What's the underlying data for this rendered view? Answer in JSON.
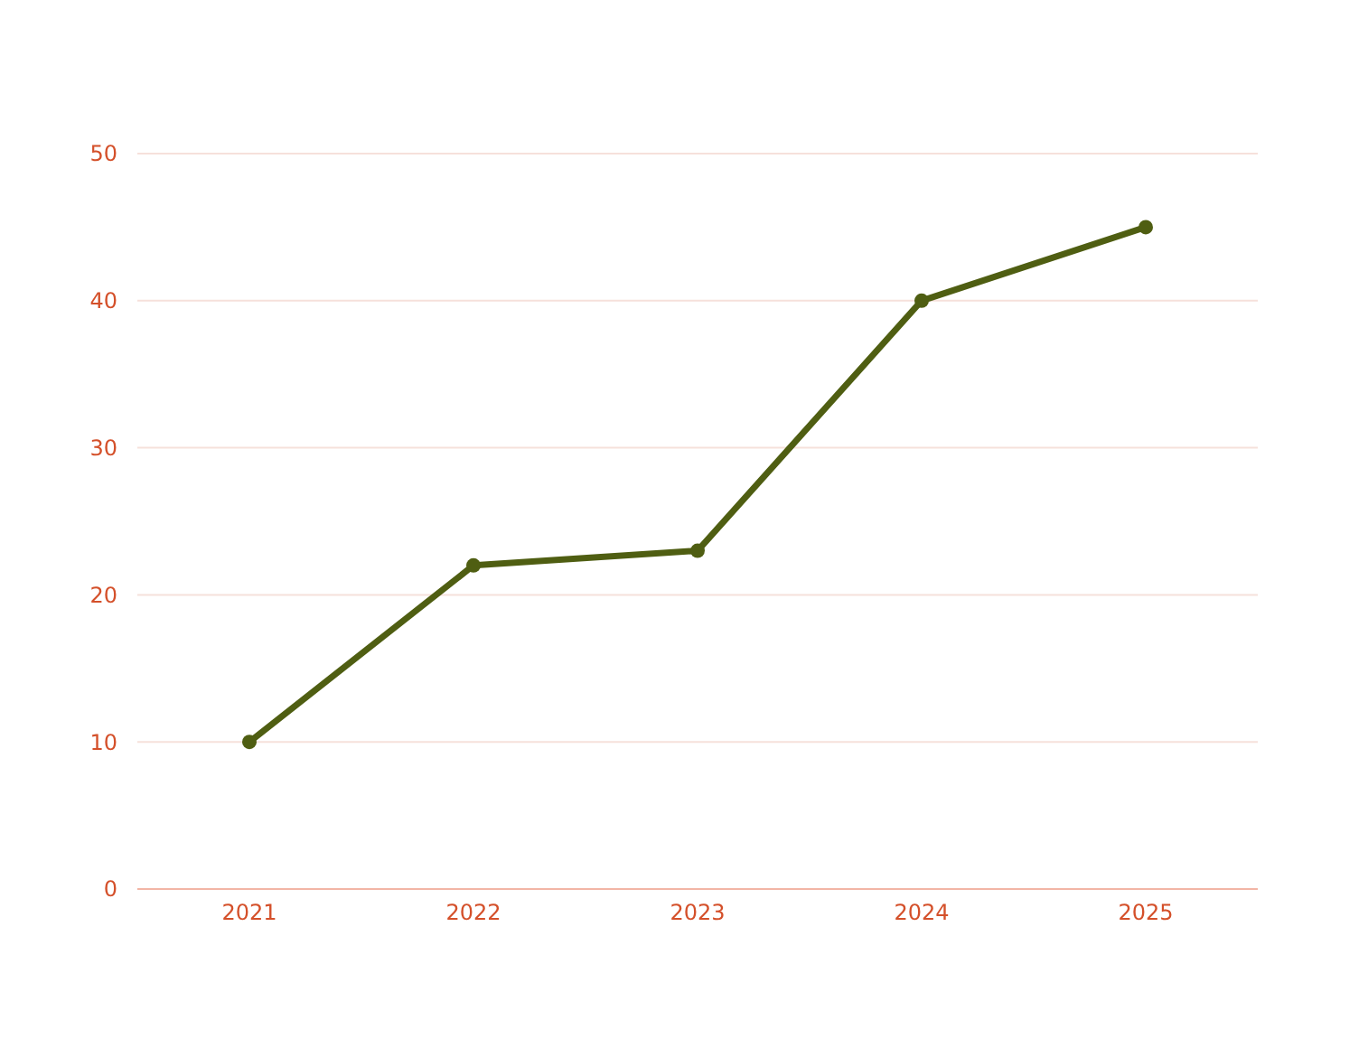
{
  "chart_data": {
    "type": "line",
    "categories": [
      "2021",
      "2022",
      "2023",
      "2024",
      "2025"
    ],
    "series": [
      {
        "color": "#4f5e12",
        "values": [
          10,
          22,
          23,
          40,
          45
        ]
      }
    ],
    "ylim": [
      0,
      50
    ],
    "yticks": [
      0,
      10,
      20,
      30,
      40,
      50
    ],
    "grid": "y",
    "marker": "circle",
    "line_style": "solid"
  }
}
